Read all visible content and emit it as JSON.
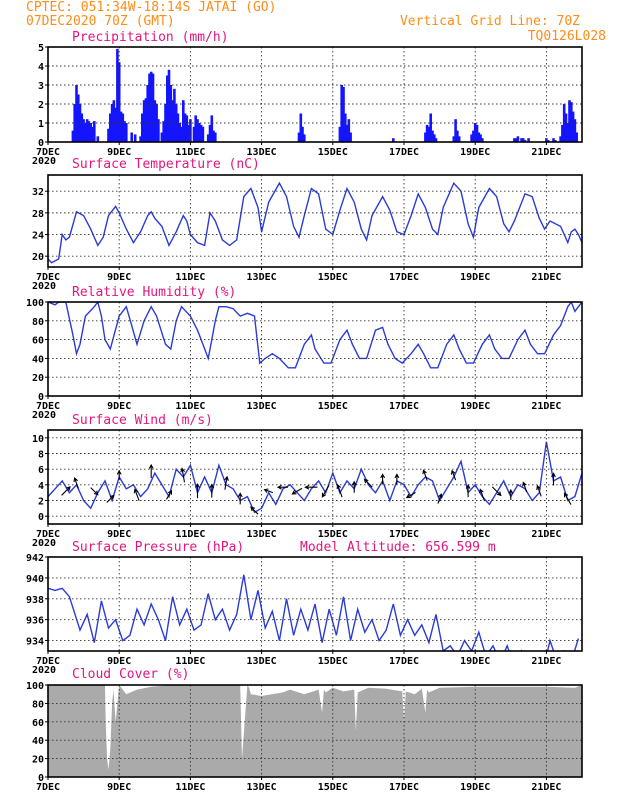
{
  "header": {
    "line1": "CPTEC:   051:34W-18:14S   JATAI (GO)",
    "line2_left": "07DEC2020 70Z (GMT)",
    "line2_right": "Vertical Grid Line: 70Z",
    "line3_right": "TQ0126L028"
  },
  "colors": {
    "header": "#ff8c1a",
    "title": "#e0177f",
    "series": "#2a3bd8",
    "bars": "#1414ff",
    "cloud": "#aaaaaa"
  },
  "x_axis": {
    "start_day": 7,
    "end_day": 22,
    "tick_days": [
      7,
      9,
      11,
      13,
      15,
      17,
      19,
      21
    ],
    "tick_labels": [
      "7DEC",
      "9DEC",
      "11DEC",
      "13DEC",
      "15DEC",
      "17DEC",
      "19DEC",
      "21DEC"
    ],
    "year_label": "2020"
  },
  "chart_data": [
    {
      "id": "precip",
      "type": "bar",
      "title": "Precipitation (mm/h)",
      "ylim": [
        0,
        5
      ],
      "yticks": [
        0,
        1,
        2,
        3,
        4,
        5
      ],
      "x": [
        7.7,
        7.75,
        7.8,
        7.85,
        7.9,
        7.95,
        8.0,
        8.05,
        8.1,
        8.15,
        8.2,
        8.25,
        8.3,
        8.4,
        8.7,
        8.75,
        8.8,
        8.85,
        8.9,
        8.95,
        9.0,
        9.05,
        9.1,
        9.15,
        9.2,
        9.35,
        9.45,
        9.6,
        9.65,
        9.7,
        9.75,
        9.8,
        9.85,
        9.9,
        9.95,
        10.0,
        10.05,
        10.1,
        10.2,
        10.25,
        10.3,
        10.35,
        10.4,
        10.45,
        10.5,
        10.55,
        10.6,
        10.65,
        10.7,
        10.75,
        10.8,
        10.85,
        10.9,
        10.95,
        11.0,
        11.1,
        11.15,
        11.2,
        11.25,
        11.3,
        11.35,
        11.5,
        11.55,
        11.6,
        11.65,
        11.7,
        14.05,
        14.1,
        14.15,
        14.2,
        15.2,
        15.25,
        15.3,
        15.35,
        15.4,
        15.45,
        15.5,
        16.7,
        17.6,
        17.65,
        17.7,
        17.75,
        17.8,
        17.85,
        17.9,
        18.4,
        18.45,
        18.5,
        18.55,
        18.9,
        18.95,
        19.0,
        19.05,
        19.1,
        19.15,
        19.2,
        20.1,
        20.15,
        20.2,
        20.3,
        20.35,
        20.4,
        20.5,
        21.0,
        21.05,
        21.2,
        21.25,
        21.4,
        21.45,
        21.5,
        21.55,
        21.6,
        21.65,
        21.7,
        21.75,
        21.8,
        21.85
      ],
      "values": [
        0.6,
        2.0,
        3.0,
        2.5,
        2.0,
        1.5,
        1.2,
        1.0,
        1.2,
        1.1,
        1.0,
        0.8,
        1.1,
        0.3,
        0.7,
        1.5,
        2.0,
        2.2,
        1.8,
        4.9,
        4.2,
        1.6,
        1.5,
        1.1,
        1.0,
        0.5,
        0.4,
        0.3,
        1.5,
        2.2,
        2.3,
        3.0,
        3.6,
        3.7,
        3.6,
        2.2,
        2.0,
        1.2,
        0.5,
        1.1,
        2.0,
        3.5,
        3.8,
        3.0,
        2.2,
        2.8,
        2.0,
        1.5,
        1.0,
        0.8,
        2.2,
        1.5,
        1.4,
        0.9,
        1.2,
        0.8,
        1.4,
        1.2,
        1.0,
        0.9,
        0.8,
        0.4,
        0.9,
        1.4,
        0.6,
        0.5,
        0.5,
        1.5,
        0.8,
        0.4,
        0.8,
        3.0,
        2.9,
        1.5,
        0.9,
        1.2,
        0.5,
        0.2,
        0.5,
        0.9,
        0.8,
        1.5,
        0.6,
        0.4,
        0.2,
        0.3,
        1.2,
        0.6,
        0.3,
        0.4,
        0.6,
        1.0,
        0.9,
        0.5,
        0.4,
        0.2,
        0.2,
        0.2,
        0.3,
        0.2,
        0.2,
        0.1,
        0.2,
        0.2,
        0.1,
        0.2,
        0.1,
        0.3,
        0.9,
        2.0,
        1.5,
        1.0,
        2.2,
        2.1,
        1.6,
        1.2,
        0.5
      ]
    },
    {
      "id": "temp",
      "type": "line",
      "title": "Surface Temperature (nC)",
      "ylim": [
        18,
        35
      ],
      "yticks": [
        20,
        24,
        28,
        32
      ],
      "x": [
        7.0,
        7.1,
        7.3,
        7.4,
        7.5,
        7.6,
        7.8,
        8.0,
        8.2,
        8.4,
        8.55,
        8.7,
        8.9,
        9.0,
        9.2,
        9.4,
        9.6,
        9.8,
        9.9,
        10.0,
        10.2,
        10.4,
        10.6,
        10.8,
        10.9,
        11.0,
        11.2,
        11.4,
        11.55,
        11.7,
        11.9,
        12.1,
        12.3,
        12.5,
        12.7,
        12.9,
        13.0,
        13.2,
        13.5,
        13.7,
        13.9,
        14.05,
        14.2,
        14.4,
        14.6,
        14.8,
        15.0,
        15.2,
        15.4,
        15.6,
        15.8,
        15.95,
        16.1,
        16.4,
        16.6,
        16.8,
        17.0,
        17.2,
        17.4,
        17.6,
        17.8,
        17.95,
        18.1,
        18.4,
        18.6,
        18.8,
        18.95,
        19.1,
        19.4,
        19.6,
        19.8,
        19.95,
        20.1,
        20.4,
        20.6,
        20.8,
        20.95,
        21.1,
        21.4,
        21.6,
        21.7,
        21.8,
        21.9,
        22.0
      ],
      "values": [
        19.5,
        18.8,
        19.5,
        24.0,
        23.0,
        23.5,
        28.2,
        27.5,
        25.0,
        22.0,
        23.5,
        27.5,
        29.2,
        28.0,
        25.0,
        22.5,
        24.5,
        27.5,
        28.2,
        27.0,
        25.5,
        22.0,
        24.5,
        27.5,
        26.5,
        24.0,
        22.5,
        22.0,
        28.0,
        26.5,
        23.0,
        22.0,
        23.0,
        31.0,
        32.5,
        29.0,
        24.5,
        30.0,
        33.5,
        31.0,
        25.5,
        23.5,
        27.5,
        32.5,
        31.5,
        25.0,
        24.0,
        28.5,
        32.5,
        30.0,
        25.0,
        23.0,
        27.5,
        31.0,
        28.5,
        24.5,
        24.0,
        27.5,
        31.5,
        29.0,
        25.0,
        24.0,
        29.0,
        33.5,
        32.0,
        26.0,
        23.5,
        29.0,
        32.5,
        31.0,
        26.0,
        24.5,
        26.5,
        31.5,
        31.0,
        27.0,
        25.0,
        26.5,
        25.5,
        22.5,
        24.5,
        25.0,
        24.0,
        22.5
      ]
    },
    {
      "id": "rh",
      "type": "line",
      "title": "Relative Humidity (%)",
      "ylim": [
        0,
        100
      ],
      "yticks": [
        0,
        20,
        40,
        60,
        80,
        100
      ],
      "x": [
        7.0,
        7.2,
        7.3,
        7.5,
        7.7,
        7.8,
        7.9,
        8.05,
        8.3,
        8.4,
        8.5,
        8.6,
        8.75,
        9.0,
        9.2,
        9.35,
        9.5,
        9.7,
        9.9,
        10.05,
        10.3,
        10.45,
        10.6,
        10.75,
        11.0,
        11.2,
        11.35,
        11.5,
        11.6,
        11.7,
        11.8,
        12.0,
        12.2,
        12.4,
        12.6,
        12.8,
        12.95,
        13.1,
        13.3,
        13.5,
        13.75,
        13.95,
        14.2,
        14.4,
        14.5,
        14.75,
        14.95,
        15.2,
        15.4,
        15.55,
        15.75,
        15.95,
        16.2,
        16.4,
        16.55,
        16.75,
        16.95,
        17.2,
        17.4,
        17.55,
        17.75,
        17.95,
        18.2,
        18.4,
        18.55,
        18.75,
        18.95,
        19.2,
        19.4,
        19.55,
        19.75,
        19.95,
        20.2,
        20.4,
        20.55,
        20.75,
        20.95,
        21.2,
        21.4,
        21.6,
        21.7,
        21.8,
        21.9,
        22.0
      ],
      "values": [
        100,
        97,
        100,
        100,
        65,
        45,
        55,
        85,
        95,
        100,
        85,
        60,
        50,
        85,
        95,
        75,
        55,
        80,
        95,
        85,
        55,
        50,
        80,
        95,
        85,
        70,
        55,
        40,
        60,
        80,
        95,
        95,
        93,
        85,
        88,
        85,
        35,
        40,
        45,
        40,
        30,
        30,
        55,
        65,
        50,
        35,
        35,
        60,
        70,
        55,
        40,
        40,
        70,
        73,
        55,
        40,
        35,
        45,
        55,
        45,
        30,
        30,
        55,
        65,
        50,
        35,
        35,
        55,
        65,
        50,
        40,
        40,
        60,
        70,
        55,
        45,
        45,
        65,
        75,
        95,
        100,
        90,
        95,
        100
      ]
    },
    {
      "id": "wind",
      "type": "line",
      "title": "Surface Wind (m/s)",
      "ylim": [
        -1,
        11
      ],
      "yticks": [
        0,
        2,
        4,
        6,
        8,
        10
      ],
      "x": [
        7.0,
        7.2,
        7.4,
        7.6,
        7.8,
        8.0,
        8.2,
        8.4,
        8.6,
        8.8,
        9.0,
        9.2,
        9.4,
        9.6,
        9.8,
        10.0,
        10.2,
        10.4,
        10.6,
        10.8,
        11.0,
        11.2,
        11.4,
        11.6,
        11.8,
        12.0,
        12.2,
        12.4,
        12.6,
        12.8,
        13.0,
        13.2,
        13.4,
        13.6,
        13.8,
        14.0,
        14.2,
        14.4,
        14.6,
        14.8,
        15.0,
        15.2,
        15.4,
        15.6,
        15.8,
        16.0,
        16.2,
        16.4,
        16.6,
        16.8,
        17.0,
        17.2,
        17.4,
        17.6,
        17.8,
        18.0,
        18.2,
        18.4,
        18.6,
        18.8,
        19.0,
        19.2,
        19.4,
        19.6,
        19.8,
        20.0,
        20.2,
        20.4,
        20.6,
        20.8,
        21.0,
        21.2,
        21.4,
        21.6,
        21.8,
        22.0
      ],
      "values": [
        2.5,
        3.5,
        4.5,
        3.0,
        4.0,
        2.0,
        1.0,
        3.0,
        4.5,
        2.0,
        5.0,
        3.5,
        4.0,
        2.5,
        3.5,
        5.5,
        4.0,
        2.5,
        6.0,
        5.0,
        6.5,
        3.0,
        5.0,
        3.0,
        6.5,
        4.0,
        3.5,
        2.0,
        2.5,
        0.5,
        1.0,
        3.0,
        1.5,
        3.5,
        4.0,
        3.0,
        2.0,
        3.5,
        4.5,
        3.0,
        5.5,
        3.0,
        4.5,
        3.5,
        6.0,
        4.0,
        3.0,
        4.5,
        2.0,
        4.5,
        4.0,
        2.5,
        4.0,
        5.0,
        4.5,
        2.0,
        3.5,
        5.0,
        7.0,
        3.0,
        4.0,
        2.5,
        1.5,
        3.0,
        4.5,
        2.5,
        4.0,
        3.5,
        2.0,
        3.0,
        9.5,
        4.5,
        5.0,
        2.0,
        2.5,
        5.5
      ],
      "arrows": {
        "x": [
          7.5,
          7.8,
          8.3,
          8.75,
          9.0,
          9.5,
          9.9,
          10.4,
          10.8,
          11.2,
          11.6,
          12.0,
          12.4,
          12.8,
          13.2,
          13.6,
          14.0,
          14.4,
          14.8,
          15.2,
          15.6,
          16.0,
          16.4,
          16.8,
          17.2,
          17.6,
          18.0,
          18.4,
          18.8,
          19.2,
          19.6,
          20.0,
          20.4,
          20.8,
          21.2,
          21.6
        ],
        "speed": [
          3,
          2.5,
          2,
          2,
          1.5,
          3,
          3.5,
          2,
          4,
          4,
          3.5,
          3.5,
          2.5,
          2,
          1.5,
          2,
          2.5,
          3,
          3.5,
          3.5,
          2.5,
          2.5,
          2,
          2,
          2,
          2.5,
          2,
          2,
          3,
          3,
          3,
          2,
          2,
          2.5,
          3,
          3.5
        ],
        "dir_deg": [
          135,
          200,
          45,
          135,
          180,
          200,
          180,
          150,
          190,
          180,
          180,
          170,
          180,
          225,
          250,
          270,
          300,
          270,
          330,
          200,
          180,
          225,
          180,
          180,
          300,
          200,
          160,
          200,
          180,
          200,
          45,
          180,
          200,
          200,
          180,
          210
        ]
      }
    },
    {
      "id": "pres",
      "type": "line",
      "title": "Surface Pressure (hPa)",
      "annotation": "Model Altitude: 656.599 m",
      "ylim": [
        933,
        942
      ],
      "yticks": [
        934,
        936,
        938,
        940,
        942
      ],
      "x": [
        7.0,
        7.2,
        7.4,
        7.6,
        7.9,
        8.1,
        8.3,
        8.5,
        8.7,
        8.9,
        9.1,
        9.3,
        9.5,
        9.7,
        9.9,
        10.1,
        10.3,
        10.5,
        10.7,
        10.9,
        11.1,
        11.3,
        11.5,
        11.7,
        11.9,
        12.1,
        12.3,
        12.5,
        12.7,
        12.9,
        13.1,
        13.3,
        13.5,
        13.7,
        13.9,
        14.1,
        14.3,
        14.5,
        14.7,
        14.9,
        15.1,
        15.3,
        15.5,
        15.7,
        15.9,
        16.1,
        16.3,
        16.5,
        16.7,
        16.9,
        17.1,
        17.3,
        17.5,
        17.7,
        17.9,
        18.1,
        18.3,
        18.5,
        18.7,
        18.9,
        19.1,
        19.3,
        19.5,
        19.7,
        19.9,
        20.1,
        20.3,
        20.5,
        20.7,
        20.9,
        21.1,
        21.3,
        21.5,
        21.7,
        21.9
      ],
      "values": [
        939.0,
        938.8,
        939.0,
        938.2,
        935.0,
        936.5,
        933.8,
        937.8,
        935.2,
        936.0,
        934.0,
        934.5,
        937.0,
        935.5,
        937.5,
        936.0,
        934.0,
        938.2,
        935.5,
        937.0,
        935.0,
        935.5,
        938.5,
        936.0,
        937.0,
        935.0,
        936.5,
        940.3,
        936.0,
        938.8,
        935.2,
        936.8,
        934.0,
        938.0,
        934.5,
        937.0,
        935.0,
        937.5,
        933.8,
        937.0,
        934.5,
        938.2,
        934.0,
        937.0,
        934.8,
        936.0,
        934.0,
        935.0,
        937.5,
        934.5,
        936.0,
        934.5,
        935.5,
        933.8,
        936.5,
        933.0,
        933.5,
        932.5,
        934.0,
        933.0,
        934.8,
        932.5,
        933.5,
        932.0,
        933.5,
        931.5,
        933.0,
        931.5,
        932.5,
        931.0,
        934.0,
        932.0,
        933.0,
        932.0,
        934.2
      ]
    },
    {
      "id": "cloud",
      "type": "area",
      "title": "Cloud Cover (%)",
      "ylim": [
        0,
        100
      ],
      "yticks": [
        0,
        20,
        40,
        60,
        80,
        100
      ],
      "x": [
        7.0,
        8.6,
        8.62,
        8.66,
        8.7,
        8.75,
        8.8,
        8.84,
        8.9,
        8.95,
        9.0,
        9.2,
        9.5,
        9.9,
        10.5,
        11.0,
        12.0,
        12.4,
        12.45,
        12.6,
        12.65,
        12.7,
        13.0,
        13.6,
        13.8,
        14.2,
        14.6,
        14.7,
        14.75,
        14.8,
        15.0,
        15.3,
        15.6,
        15.65,
        15.7,
        16.0,
        16.5,
        16.95,
        17.0,
        17.05,
        17.3,
        17.5,
        17.6,
        17.65,
        17.7,
        18.0,
        19.0,
        20.0,
        21.0,
        21.8,
        22.0
      ],
      "values": [
        100,
        100,
        60,
        20,
        8,
        30,
        80,
        95,
        60,
        80,
        100,
        90,
        95,
        98,
        100,
        100,
        100,
        100,
        20,
        100,
        97,
        90,
        88,
        92,
        95,
        90,
        95,
        70,
        95,
        92,
        97,
        93,
        95,
        50,
        92,
        97,
        96,
        93,
        60,
        93,
        90,
        96,
        70,
        95,
        92,
        97,
        98,
        98,
        98,
        97,
        100
      ]
    }
  ]
}
